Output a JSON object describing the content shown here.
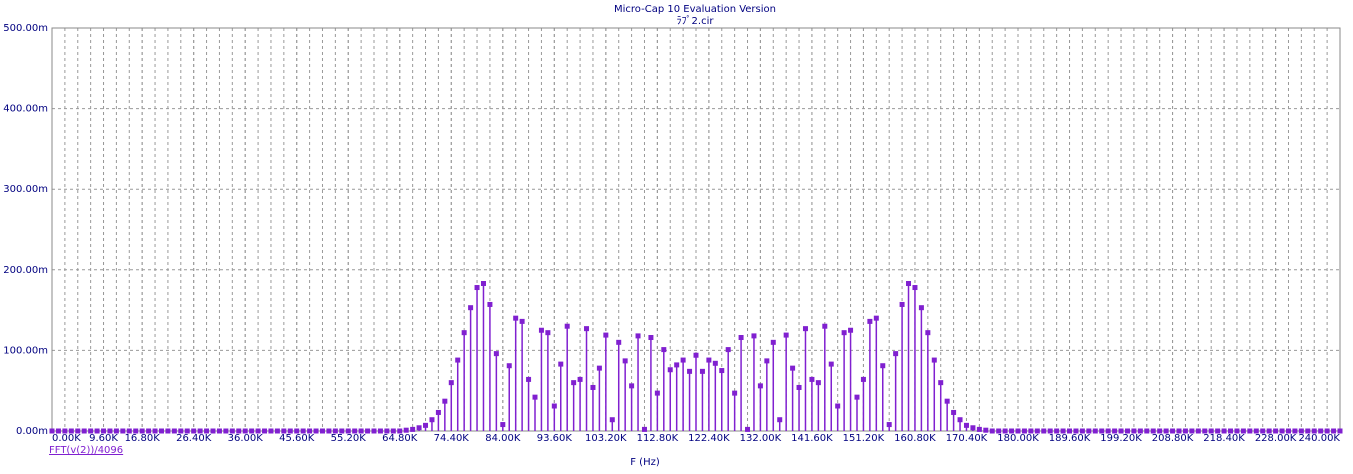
{
  "chart_data": {
    "type": "stem",
    "title": "Micro-Cap 10 Evaluation Version",
    "subtitle": "ﾗﾌﾟ2.cir",
    "x_label": "F (Hz)",
    "x": [
      0,
      1200,
      2400,
      3600,
      4800,
      6000,
      7200,
      8400,
      9600,
      10800,
      12000,
      13200,
      14400,
      15600,
      16800,
      18000,
      19200,
      20400,
      21600,
      22800,
      24000,
      25200,
      26400,
      27600,
      28800,
      30000,
      31200,
      32400,
      33600,
      34800,
      36000,
      37200,
      38400,
      39600,
      40800,
      42000,
      43200,
      44400,
      45600,
      46800,
      48000,
      49200,
      50400,
      51600,
      52800,
      54000,
      55200,
      56400,
      57600,
      58800,
      60000,
      61200,
      62400,
      63600,
      64800,
      66000,
      67200,
      68400,
      69600,
      70800,
      72000,
      73200,
      74400,
      75600,
      76800,
      78000,
      79200,
      80400,
      81600,
      82800,
      84000,
      85200,
      86400,
      87600,
      88800,
      90000,
      91200,
      92400,
      93600,
      94800,
      96000,
      97200,
      98400,
      99600,
      100800,
      102000,
      103200,
      104400,
      105600,
      106800,
      108000,
      109200,
      110400,
      111600,
      112800,
      114000,
      115200,
      116400,
      117600,
      118800,
      120000,
      121200,
      122400,
      123600,
      124800,
      126000,
      127200,
      128400,
      129600,
      130800,
      132000,
      133200,
      134400,
      135600,
      136800,
      138000,
      139200,
      140400,
      141600,
      142800,
      144000,
      145200,
      146400,
      147600,
      148800,
      150000,
      151200,
      152400,
      153600,
      154800,
      156000,
      157200,
      158400,
      159600,
      160800,
      162000,
      163200,
      164400,
      165600,
      166800,
      168000,
      169200,
      170400,
      171600,
      172800,
      174000,
      175200,
      176400,
      177600,
      178800,
      180000,
      181200,
      182400,
      183600,
      184800,
      186000,
      187200,
      188400,
      189600,
      190800,
      192000,
      193200,
      194400,
      195600,
      196800,
      198000,
      199200,
      200400,
      201600,
      202800,
      204000,
      205200,
      206400,
      207600,
      208800,
      210000,
      211200,
      212400,
      213600,
      214800,
      216000,
      217200,
      218400,
      219600,
      220800,
      222000,
      223200,
      224400,
      225600,
      226800,
      228000,
      229200,
      230400,
      231600,
      232800,
      234000,
      235200,
      236400,
      237600,
      238800,
      240000
    ],
    "series": [
      {
        "name": "FFT(v(2))/4096",
        "color": "#8020d0",
        "values": [
          0,
          0,
          0,
          0,
          0,
          0,
          0,
          0,
          0,
          0,
          0,
          0,
          0,
          0,
          0,
          0,
          0,
          0,
          0,
          0,
          0,
          0,
          0,
          0,
          0,
          0,
          0,
          0,
          0,
          0,
          0,
          0,
          0,
          0,
          0,
          0,
          0,
          0,
          0,
          0,
          0,
          0,
          0,
          0,
          0,
          0,
          0,
          0,
          0,
          0,
          0,
          0,
          0,
          0,
          0,
          1,
          2,
          4,
          7,
          14,
          23,
          37,
          60,
          88,
          122,
          153,
          178,
          183,
          157,
          96,
          8,
          81,
          140,
          136,
          64,
          42,
          125,
          122,
          31,
          83,
          130,
          60,
          64,
          127,
          54,
          78,
          119,
          14,
          110,
          87,
          56,
          118,
          2,
          116,
          47,
          101,
          76,
          82,
          88,
          74,
          94,
          74,
          88,
          84,
          75,
          101,
          47,
          116,
          2,
          118,
          56,
          87,
          110,
          14,
          119,
          78,
          54,
          127,
          64,
          60,
          130,
          83,
          31,
          122,
          125,
          42,
          64,
          136,
          140,
          81,
          8,
          96,
          157,
          183,
          178,
          153,
          122,
          88,
          60,
          37,
          23,
          14,
          7,
          4,
          2,
          1,
          0,
          0,
          0,
          0,
          0,
          0,
          0,
          0,
          0,
          0,
          0,
          0,
          0,
          0,
          0,
          0,
          0,
          0,
          0,
          0,
          0,
          0,
          0,
          0,
          0,
          0,
          0,
          0,
          0,
          0,
          0,
          0,
          0,
          0,
          0,
          0,
          0,
          0,
          0,
          0,
          0,
          0,
          0,
          0,
          0,
          0,
          0,
          0,
          0,
          0,
          0,
          0,
          0,
          0,
          0
        ]
      }
    ],
    "xlim": [
      0,
      240000
    ],
    "xticks": [
      {
        "value": 0,
        "label": "0.00K"
      },
      {
        "value": 9600,
        "label": "9.60K"
      },
      {
        "value": 16800,
        "label": "16.80K"
      },
      {
        "value": 26400,
        "label": "26.40K"
      },
      {
        "value": 36000,
        "label": "36.00K"
      },
      {
        "value": 45600,
        "label": "45.60K"
      },
      {
        "value": 55200,
        "label": "55.20K"
      },
      {
        "value": 64800,
        "label": "64.80K"
      },
      {
        "value": 74400,
        "label": "74.40K"
      },
      {
        "value": 84000,
        "label": "84.00K"
      },
      {
        "value": 93600,
        "label": "93.60K"
      },
      {
        "value": 103200,
        "label": "103.20K"
      },
      {
        "value": 112800,
        "label": "112.80K"
      },
      {
        "value": 122400,
        "label": "122.40K"
      },
      {
        "value": 132000,
        "label": "132.00K"
      },
      {
        "value": 141600,
        "label": "141.60K"
      },
      {
        "value": 151200,
        "label": "151.20K"
      },
      {
        "value": 160800,
        "label": "160.80K"
      },
      {
        "value": 170400,
        "label": "170.40K"
      },
      {
        "value": 180000,
        "label": "180.00K"
      },
      {
        "value": 189600,
        "label": "189.60K"
      },
      {
        "value": 199200,
        "label": "199.20K"
      },
      {
        "value": 208800,
        "label": "208.80K"
      },
      {
        "value": 218400,
        "label": "218.40K"
      },
      {
        "value": 228000,
        "label": "228.00K"
      },
      {
        "value": 240000,
        "label": "240.00K"
      }
    ],
    "ylim": [
      0,
      500
    ],
    "yticks": [
      {
        "value": 0,
        "label": "0.00m"
      },
      {
        "value": 100,
        "label": "100.00m"
      },
      {
        "value": 200,
        "label": "200.00m"
      },
      {
        "value": 300,
        "label": "300.00m"
      },
      {
        "value": 400,
        "label": "400.00m"
      },
      {
        "value": 500,
        "label": "500.00m"
      }
    ],
    "grid": true
  }
}
